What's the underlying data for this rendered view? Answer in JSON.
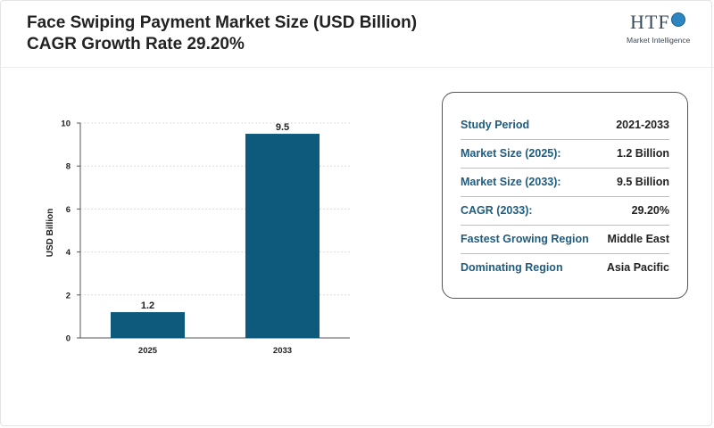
{
  "header": {
    "title_line1": "Face Swiping Payment Market Size (USD Billion)",
    "title_line2": "CAGR Growth Rate 29.20%"
  },
  "logo": {
    "mark": "HTF",
    "subtitle": "Market Intelligence"
  },
  "chart_data": {
    "type": "bar",
    "categories": [
      "2025",
      "2033"
    ],
    "values": [
      1.2,
      9.5
    ],
    "data_labels": [
      "1.2",
      "9.5"
    ],
    "title": "",
    "xlabel": "",
    "ylabel": "USD Billion",
    "ylim": [
      0,
      10
    ],
    "yticks": [
      0,
      2,
      4,
      6,
      8,
      10
    ],
    "grid": true,
    "bar_color": "#0d5a7d"
  },
  "info_table": {
    "rows": [
      {
        "label": "Study Period",
        "value": "2021-2033"
      },
      {
        "label": "Market Size (2025):",
        "value": "1.2 Billion"
      },
      {
        "label": "Market Size (2033):",
        "value": "9.5 Billion"
      },
      {
        "label": "CAGR (2033):",
        "value": "29.20%"
      },
      {
        "label": "Fastest Growing Region",
        "value": "Middle East"
      },
      {
        "label": "Dominating Region",
        "value": "Asia Pacific"
      }
    ]
  },
  "colors": {
    "label_color": "#1e5c80",
    "text_color": "#222222"
  }
}
